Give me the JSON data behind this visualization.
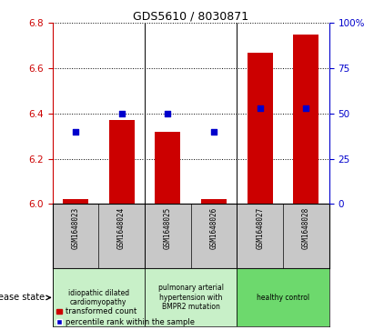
{
  "title": "GDS5610 / 8030871",
  "samples": [
    "GSM1648023",
    "GSM1648024",
    "GSM1648025",
    "GSM1648026",
    "GSM1648027",
    "GSM1648028"
  ],
  "bar_values": [
    6.02,
    6.37,
    6.32,
    6.02,
    6.67,
    6.75
  ],
  "bar_base": 6.0,
  "percentile_values": [
    40,
    50,
    50,
    40,
    53,
    53
  ],
  "ylim_left": [
    6.0,
    6.8
  ],
  "ylim_right": [
    0,
    100
  ],
  "yticks_left": [
    6.0,
    6.2,
    6.4,
    6.6,
    6.8
  ],
  "yticks_right": [
    0,
    25,
    50,
    75,
    100
  ],
  "ytick_labels_right": [
    "0",
    "25",
    "50",
    "75",
    "100%"
  ],
  "bar_color": "#CC0000",
  "dot_color": "#0000CC",
  "bar_width": 0.55,
  "disease_groups": [
    {
      "label": "idiopathic dilated\ncardiomyopathy",
      "start": 0,
      "end": 1,
      "color": "#c8f0c8"
    },
    {
      "label": "pulmonary arterial\nhypertension with\nBMPR2 mutation",
      "start": 2,
      "end": 3,
      "color": "#c8f0c8"
    },
    {
      "label": "healthy control",
      "start": 4,
      "end": 5,
      "color": "#6dd96d"
    }
  ],
  "disease_state_label": "disease state",
  "legend_bar_label": "transformed count",
  "legend_dot_label": "percentile rank within the sample",
  "bg_label_area": "#c8c8c8",
  "title_color": "#000000",
  "left_axis_color": "#CC0000",
  "right_axis_color": "#0000CC"
}
